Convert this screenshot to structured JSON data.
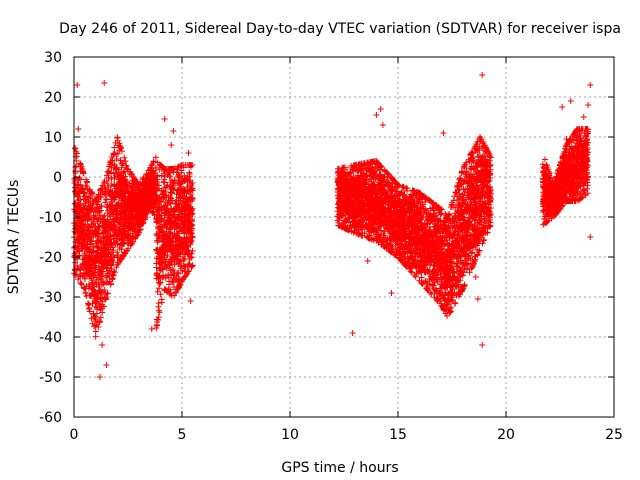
{
  "chart_data": {
    "type": "scatter",
    "title": "Day 246 of 2011, Sidereal Day-to-day VTEC variation (SDTVAR) for receiver ispa",
    "xlabel": "GPS time / hours",
    "ylabel": "SDTVAR / TECUs",
    "xlim": [
      0,
      25
    ],
    "ylim": [
      -60,
      30
    ],
    "xticks": [
      0,
      5,
      10,
      15,
      20,
      25
    ],
    "yticks": [
      -60,
      -50,
      -40,
      -30,
      -20,
      -10,
      0,
      10,
      20,
      30
    ],
    "grid": true,
    "marker": "plus",
    "series_color": "#ff0000",
    "segments": [
      {
        "name": "dense-band-a",
        "x": [
          0.0,
          0.5,
          1.0,
          1.5,
          2.0,
          2.5,
          3.0,
          3.5,
          3.8
        ],
        "lo": [
          -24,
          -28,
          -40,
          -30,
          -22,
          -18,
          -14,
          -8,
          -10
        ],
        "hi": [
          8,
          0,
          -6,
          0,
          10,
          2,
          -2,
          2,
          5
        ]
      },
      {
        "name": "dense-band-b",
        "x": [
          3.8,
          4.2,
          4.6,
          5.0,
          5.5
        ],
        "lo": [
          -38,
          -28,
          -30,
          -26,
          -22
        ],
        "hi": [
          4,
          2,
          2,
          3,
          3
        ]
      },
      {
        "name": "dense-band-c",
        "x": [
          12.2,
          13.0,
          14.0,
          15.0,
          16.0,
          17.0,
          17.3,
          18.0,
          18.8,
          19.3
        ],
        "lo": [
          -12,
          -14,
          -16,
          -20,
          -26,
          -32,
          -35,
          -28,
          -18,
          -12
        ],
        "hi": [
          2,
          3,
          4,
          -2,
          -4,
          -8,
          -10,
          2,
          10,
          5
        ]
      },
      {
        "name": "dense-band-d",
        "x": [
          21.7,
          22.2,
          22.8,
          23.3,
          23.8
        ],
        "lo": [
          -12,
          -10,
          -6,
          -6,
          -4
        ],
        "hi": [
          6,
          -2,
          8,
          12,
          12
        ]
      }
    ],
    "outliers": [
      [
        0.15,
        23
      ],
      [
        0.2,
        12
      ],
      [
        1.4,
        23.5
      ],
      [
        1.2,
        -50
      ],
      [
        1.5,
        -47
      ],
      [
        1.3,
        -42
      ],
      [
        4.2,
        14.5
      ],
      [
        4.6,
        11.5
      ],
      [
        4.5,
        8
      ],
      [
        5.4,
        -31
      ],
      [
        5.3,
        6
      ],
      [
        3.6,
        -38
      ],
      [
        12.9,
        -39
      ],
      [
        14.0,
        15.5
      ],
      [
        14.2,
        17
      ],
      [
        14.3,
        13
      ],
      [
        13.6,
        -21
      ],
      [
        14.7,
        -29
      ],
      [
        16.7,
        -23
      ],
      [
        18.9,
        25.5
      ],
      [
        18.9,
        -42
      ],
      [
        18.7,
        -30.5
      ],
      [
        18.6,
        -25
      ],
      [
        17.1,
        11
      ],
      [
        22.6,
        17.5
      ],
      [
        23.0,
        19
      ],
      [
        22.8,
        9.5
      ],
      [
        23.6,
        15
      ],
      [
        23.8,
        18
      ],
      [
        23.9,
        23
      ],
      [
        23.9,
        -15
      ],
      [
        18.0,
        -10
      ],
      [
        18.5,
        -15
      ]
    ]
  }
}
